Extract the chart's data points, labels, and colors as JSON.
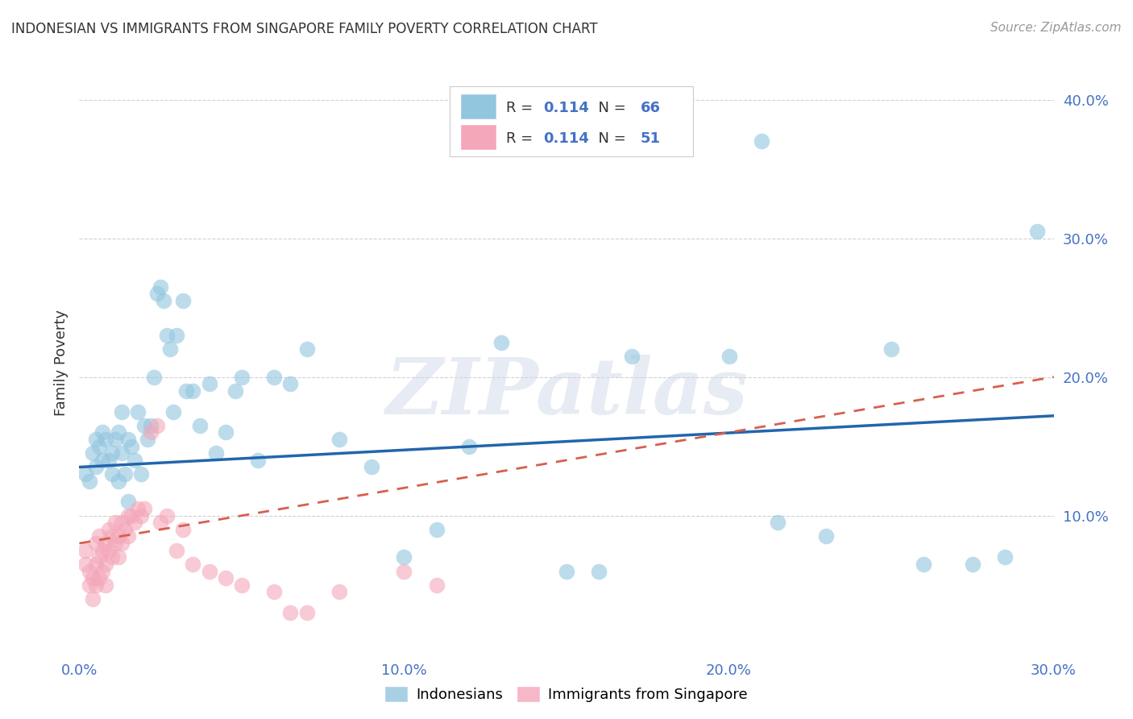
{
  "title": "INDONESIAN VS IMMIGRANTS FROM SINGAPORE FAMILY POVERTY CORRELATION CHART",
  "source": "Source: ZipAtlas.com",
  "ylabel": "Family Poverty",
  "watermark": "ZIPatlas",
  "blue_color": "#92c5de",
  "pink_color": "#f4a7b9",
  "blue_line_color": "#2166ac",
  "pink_line_color": "#d6604d",
  "grid_color": "#cccccc",
  "title_color": "#333333",
  "axis_label_color": "#4472C4",
  "source_color": "#999999",
  "legend_text_color": "#333333",
  "legend_num_color": "#4472C4",
  "xlim": [
    0.0,
    0.3
  ],
  "ylim": [
    0.0,
    0.42
  ],
  "blue_line_x0": 0.0,
  "blue_line_y0": 0.135,
  "blue_line_x1": 0.3,
  "blue_line_y1": 0.172,
  "pink_line_x0": 0.0,
  "pink_line_y0": 0.08,
  "pink_line_x1": 0.3,
  "pink_line_y1": 0.2,
  "blue_scatter_x": [
    0.002,
    0.003,
    0.004,
    0.005,
    0.005,
    0.006,
    0.007,
    0.007,
    0.008,
    0.009,
    0.01,
    0.01,
    0.011,
    0.012,
    0.012,
    0.013,
    0.013,
    0.014,
    0.015,
    0.015,
    0.016,
    0.017,
    0.018,
    0.019,
    0.02,
    0.021,
    0.022,
    0.023,
    0.024,
    0.025,
    0.026,
    0.027,
    0.028,
    0.029,
    0.03,
    0.032,
    0.033,
    0.035,
    0.037,
    0.04,
    0.042,
    0.045,
    0.048,
    0.05,
    0.055,
    0.06,
    0.065,
    0.07,
    0.08,
    0.09,
    0.1,
    0.11,
    0.12,
    0.13,
    0.15,
    0.16,
    0.17,
    0.2,
    0.21,
    0.215,
    0.23,
    0.25,
    0.26,
    0.275,
    0.285,
    0.295
  ],
  "blue_scatter_y": [
    0.13,
    0.125,
    0.145,
    0.135,
    0.155,
    0.15,
    0.14,
    0.16,
    0.155,
    0.14,
    0.145,
    0.13,
    0.155,
    0.16,
    0.125,
    0.145,
    0.175,
    0.13,
    0.155,
    0.11,
    0.15,
    0.14,
    0.175,
    0.13,
    0.165,
    0.155,
    0.165,
    0.2,
    0.26,
    0.265,
    0.255,
    0.23,
    0.22,
    0.175,
    0.23,
    0.255,
    0.19,
    0.19,
    0.165,
    0.195,
    0.145,
    0.16,
    0.19,
    0.2,
    0.14,
    0.2,
    0.195,
    0.22,
    0.155,
    0.135,
    0.07,
    0.09,
    0.15,
    0.225,
    0.06,
    0.06,
    0.215,
    0.215,
    0.37,
    0.095,
    0.085,
    0.22,
    0.065,
    0.065,
    0.07,
    0.305
  ],
  "pink_scatter_x": [
    0.002,
    0.002,
    0.003,
    0.003,
    0.004,
    0.004,
    0.005,
    0.005,
    0.005,
    0.006,
    0.006,
    0.006,
    0.007,
    0.007,
    0.008,
    0.008,
    0.008,
    0.009,
    0.009,
    0.01,
    0.01,
    0.011,
    0.011,
    0.012,
    0.012,
    0.013,
    0.013,
    0.014,
    0.015,
    0.015,
    0.016,
    0.017,
    0.018,
    0.019,
    0.02,
    0.022,
    0.024,
    0.025,
    0.027,
    0.03,
    0.032,
    0.035,
    0.04,
    0.045,
    0.05,
    0.06,
    0.065,
    0.07,
    0.08,
    0.1,
    0.11
  ],
  "pink_scatter_y": [
    0.075,
    0.065,
    0.06,
    0.05,
    0.055,
    0.04,
    0.08,
    0.065,
    0.05,
    0.085,
    0.07,
    0.055,
    0.075,
    0.06,
    0.08,
    0.065,
    0.05,
    0.09,
    0.075,
    0.085,
    0.07,
    0.095,
    0.08,
    0.085,
    0.07,
    0.095,
    0.08,
    0.09,
    0.1,
    0.085,
    0.1,
    0.095,
    0.105,
    0.1,
    0.105,
    0.16,
    0.165,
    0.095,
    0.1,
    0.075,
    0.09,
    0.065,
    0.06,
    0.055,
    0.05,
    0.045,
    0.03,
    0.03,
    0.045,
    0.06,
    0.05
  ],
  "yticks": [
    0.0,
    0.1,
    0.2,
    0.3,
    0.4
  ],
  "ytick_labels": [
    "",
    "10.0%",
    "20.0%",
    "30.0%",
    "40.0%"
  ],
  "xticks": [
    0.0,
    0.1,
    0.2,
    0.3
  ],
  "xtick_labels": [
    "0.0%",
    "10.0%",
    "20.0%",
    "30.0%"
  ]
}
